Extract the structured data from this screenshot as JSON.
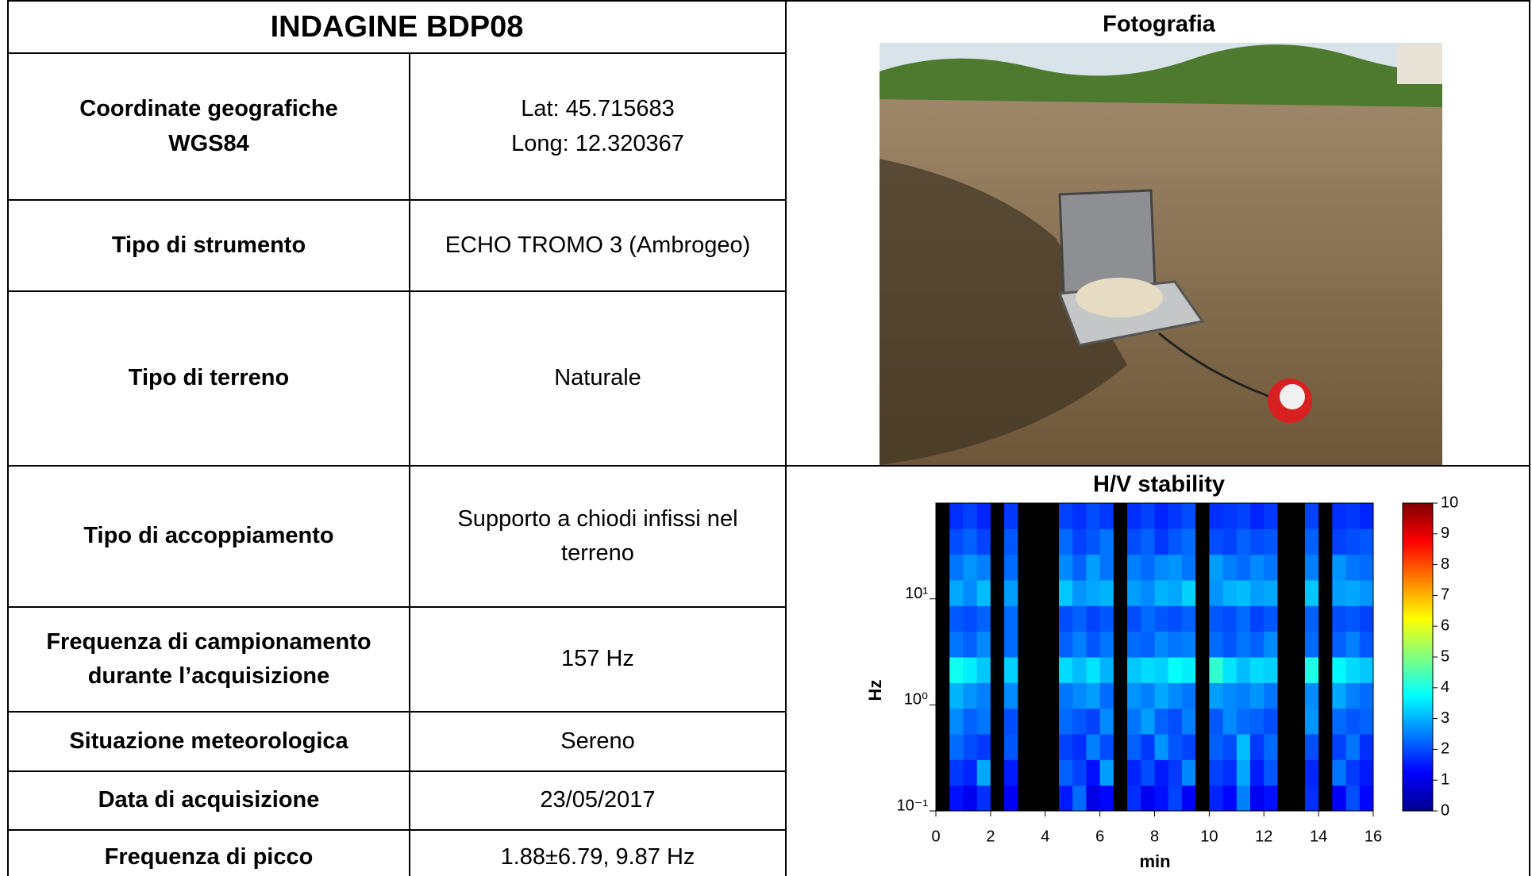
{
  "table": {
    "title": "INDAGINE BDP08",
    "rows": [
      [
        "Coordinate geografiche\nWGS84",
        "Lat: 45.715683\nLong: 12.320367"
      ],
      [
        "Tipo di strumento",
        "ECHO TROMO 3 (Ambrogeo)"
      ],
      [
        "Tipo di terreno",
        "Naturale"
      ],
      [
        "Tipo di accoppiamento",
        "Supporto a chiodi infissi nel\nterreno"
      ],
      [
        "Frequenza di campionamento\ndurante l’acquisizione",
        "157 Hz"
      ],
      [
        "Situazione meteorologica",
        "Sereno"
      ],
      [
        "Data di acquisizione",
        "23/05/2017"
      ],
      [
        "Frequenza di picco",
        "1.88±6.79, 9.87 Hz"
      ]
    ]
  },
  "photo_title": "Fotografia",
  "chart_data": {
    "type": "heatmap",
    "title": "H/V stability",
    "xlabel": "min",
    "ylabel": "Hz",
    "xlim": [
      0,
      16
    ],
    "xticks": [
      0,
      2,
      4,
      6,
      8,
      10,
      12,
      14,
      16
    ],
    "ylim": [
      0.1,
      80
    ],
    "log_y": true,
    "yticks": [
      {
        "value": 0.1,
        "label": "10⁻¹"
      },
      {
        "value": 1,
        "label": "10⁰"
      },
      {
        "value": 10,
        "label": "10¹"
      }
    ],
    "colorbar": {
      "lim": [
        0,
        10
      ],
      "ticks": [
        0,
        1,
        2,
        3,
        4,
        5,
        6,
        7,
        8,
        9,
        10
      ]
    },
    "z": [
      [
        null,
        1.4,
        1.1,
        1.7,
        null,
        1.2,
        null,
        null,
        null,
        1.5,
        2.3,
        1.0,
        1.3,
        null,
        1.7,
        1.1,
        1.4,
        1.9,
        1.2,
        null,
        1.6,
        1.3,
        2.5,
        1.1,
        1.4,
        null,
        null,
        1.7,
        null,
        1.2,
        2.0,
        1.3
      ],
      [
        null,
        1.8,
        1.6,
        2.9,
        null,
        1.5,
        null,
        null,
        null,
        2.2,
        1.9,
        1.4,
        2.8,
        null,
        1.6,
        2.0,
        1.5,
        1.8,
        2.6,
        null,
        1.9,
        1.7,
        2.9,
        1.5,
        2.1,
        null,
        null,
        1.6,
        null,
        2.4,
        1.8,
        1.5
      ],
      [
        null,
        2.3,
        2.0,
        1.8,
        null,
        2.1,
        null,
        null,
        null,
        1.9,
        1.7,
        2.5,
        2.0,
        null,
        2.2,
        1.8,
        2.7,
        2.1,
        1.9,
        null,
        2.2,
        2.0,
        3.1,
        1.8,
        2.3,
        null,
        null,
        2.0,
        null,
        1.9,
        2.4,
        1.7
      ],
      [
        null,
        2.6,
        2.2,
        2.4,
        null,
        2.0,
        null,
        null,
        null,
        2.3,
        2.1,
        1.9,
        2.6,
        null,
        2.4,
        2.8,
        2.2,
        2.0,
        2.5,
        null,
        2.1,
        2.6,
        2.3,
        2.2,
        2.0,
        null,
        null,
        2.7,
        null,
        2.3,
        2.1,
        2.2
      ],
      [
        null,
        3.0,
        2.7,
        2.5,
        null,
        2.6,
        null,
        null,
        null,
        2.4,
        2.6,
        2.8,
        2.3,
        null,
        2.7,
        2.5,
        2.9,
        2.6,
        2.4,
        null,
        2.8,
        2.6,
        2.5,
        2.7,
        2.4,
        null,
        null,
        2.6,
        null,
        2.9,
        2.5,
        2.3
      ],
      [
        null,
        3.9,
        3.6,
        3.2,
        null,
        3.3,
        null,
        null,
        null,
        3.4,
        3.1,
        3.5,
        3.0,
        null,
        3.2,
        3.4,
        3.3,
        3.8,
        3.6,
        null,
        4.2,
        3.5,
        3.1,
        3.4,
        3.3,
        null,
        null,
        4.0,
        null,
        3.7,
        3.4,
        3.2
      ],
      [
        null,
        2.4,
        2.2,
        2.6,
        null,
        2.3,
        null,
        null,
        null,
        2.2,
        2.5,
        2.1,
        2.4,
        null,
        2.3,
        2.2,
        2.6,
        2.4,
        2.5,
        null,
        2.3,
        2.1,
        2.4,
        2.2,
        2.6,
        null,
        null,
        2.3,
        null,
        2.2,
        2.5,
        2.1
      ],
      [
        null,
        2.1,
        2.0,
        2.2,
        null,
        2.3,
        null,
        null,
        null,
        2.0,
        2.2,
        1.9,
        2.1,
        null,
        2.0,
        2.3,
        2.1,
        2.0,
        2.2,
        null,
        2.1,
        2.0,
        2.3,
        1.9,
        2.1,
        null,
        null,
        2.2,
        null,
        2.0,
        2.1,
        1.9
      ],
      [
        null,
        2.9,
        2.6,
        3.1,
        null,
        2.8,
        null,
        null,
        null,
        3.2,
        2.7,
        2.9,
        3.0,
        null,
        2.8,
        2.6,
        3.0,
        2.9,
        3.3,
        null,
        2.7,
        3.0,
        3.1,
        2.8,
        2.9,
        null,
        null,
        3.2,
        null,
        2.8,
        2.9,
        2.7
      ],
      [
        null,
        2.4,
        2.7,
        2.5,
        null,
        2.3,
        null,
        null,
        null,
        2.6,
        2.2,
        2.8,
        2.4,
        null,
        2.5,
        2.3,
        2.6,
        2.7,
        2.4,
        null,
        2.8,
        2.5,
        2.3,
        2.6,
        2.4,
        null,
        null,
        2.5,
        null,
        2.7,
        2.4,
        2.3
      ],
      [
        null,
        2.0,
        2.2,
        1.9,
        null,
        2.1,
        null,
        null,
        null,
        2.3,
        1.9,
        2.1,
        2.4,
        null,
        2.0,
        2.2,
        1.8,
        2.1,
        2.3,
        null,
        2.0,
        1.9,
        2.2,
        2.0,
        2.1,
        null,
        null,
        2.2,
        null,
        1.9,
        2.0,
        2.1
      ],
      [
        null,
        1.7,
        1.9,
        1.6,
        null,
        1.8,
        null,
        null,
        null,
        1.9,
        1.7,
        2.0,
        1.8,
        null,
        1.7,
        1.9,
        1.6,
        1.8,
        2.0,
        null,
        1.7,
        1.8,
        1.9,
        1.6,
        1.8,
        null,
        null,
        1.9,
        null,
        1.7,
        1.8,
        1.6
      ]
    ]
  }
}
